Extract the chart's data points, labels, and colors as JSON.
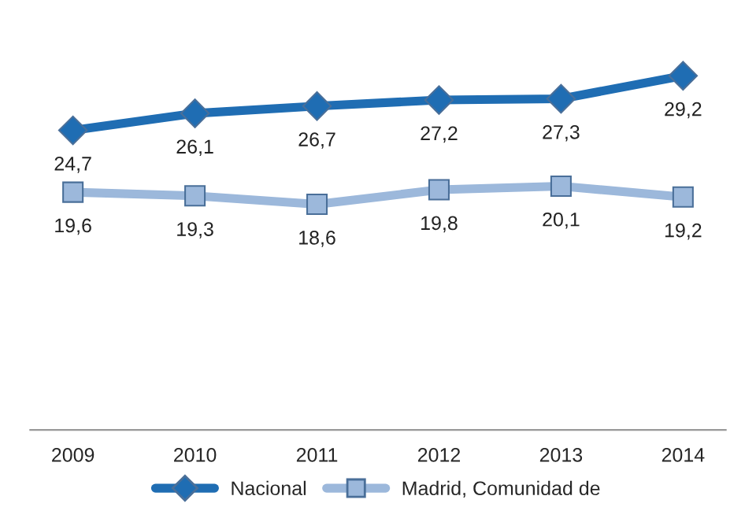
{
  "chart_data": {
    "type": "line",
    "categories": [
      "2009",
      "2010",
      "2011",
      "2012",
      "2013",
      "2014"
    ],
    "series": [
      {
        "name": "Nacional",
        "color": "#1f6db3",
        "marker": "diamond",
        "values": [
          24.7,
          26.1,
          26.7,
          27.2,
          27.3,
          29.2
        ],
        "value_labels": [
          "24,7",
          "26,1",
          "26,7",
          "27,2",
          "27,3",
          "29,2"
        ]
      },
      {
        "name": "Madrid, Comunidad de",
        "color": "#9cb8db",
        "marker": "square",
        "values": [
          19.6,
          19.3,
          18.6,
          19.8,
          20.1,
          19.2
        ],
        "value_labels": [
          "19,6",
          "19,3",
          "18,6",
          "19,8",
          "20,1",
          "19,2"
        ]
      }
    ],
    "tick_labels": "x",
    "legend": "bottom",
    "grid": false
  }
}
